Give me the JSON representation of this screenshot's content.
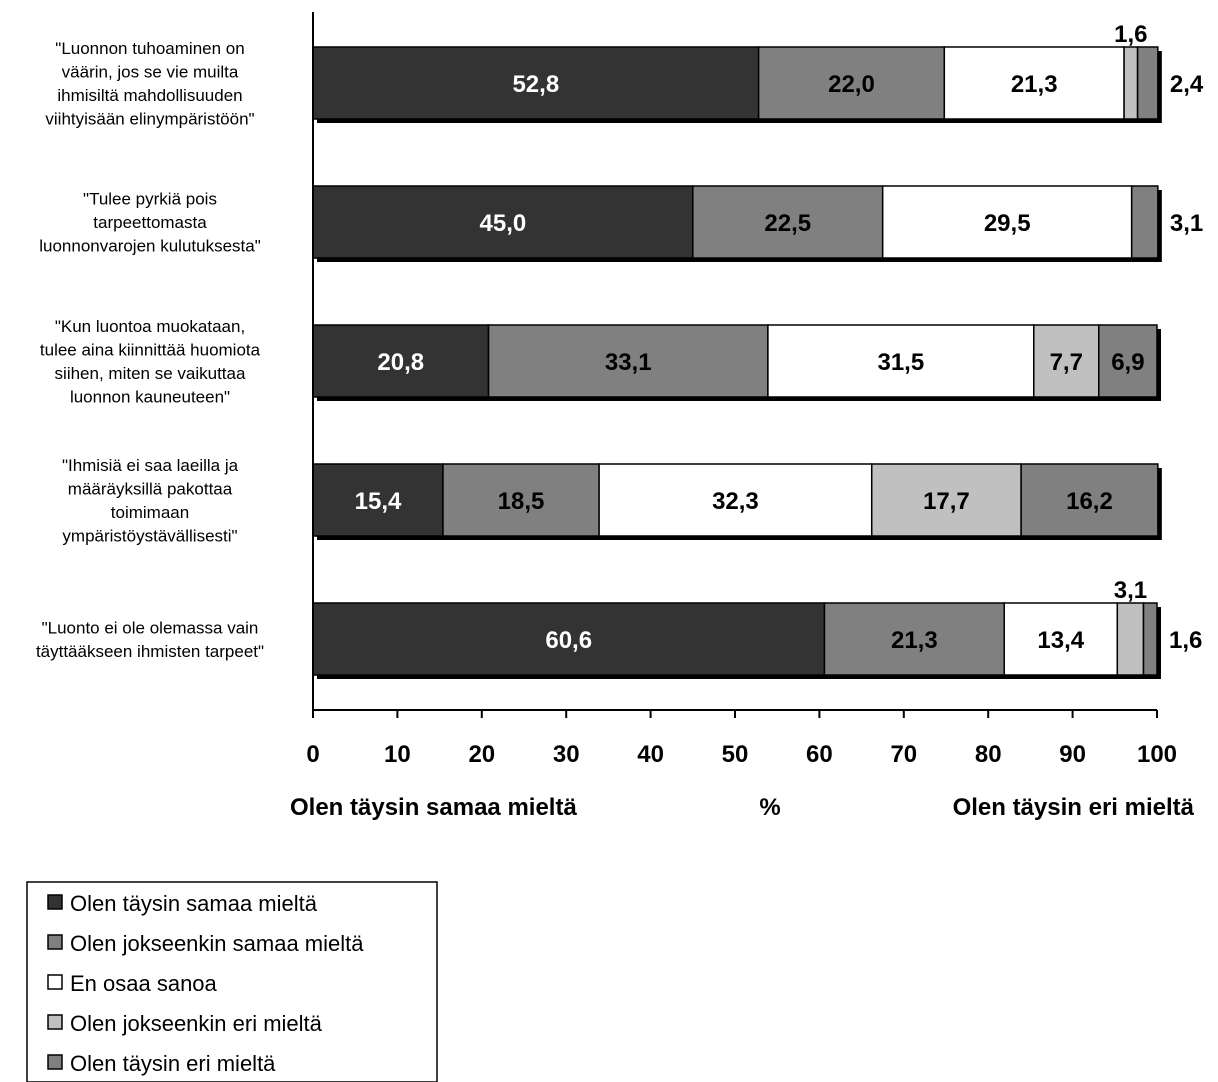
{
  "chart_data": {
    "type": "bar",
    "orientation": "horizontal",
    "stacked": true,
    "categories": [
      [
        "\"Luonnon tuhoaminen on",
        "väärin, jos se vie muilta",
        "ihmisiltä mahdollisuuden",
        "viihtyisään elinympäristöön\""
      ],
      [
        "\"Tulee pyrkiä pois",
        "tarpeettomasta",
        "luonnonvarojen kulutuksesta\""
      ],
      [
        "\"Kun luontoa muokataan,",
        "tulee aina kiinnittää huomiota",
        "siihen, miten se vaikuttaa",
        "luonnon kauneuteen\""
      ],
      [
        "\"Ihmisiä ei saa laeilla ja",
        "määräyksillä pakottaa",
        "toimimaan",
        "ympäristöystävällisesti\""
      ],
      [
        "\"Luonto ei ole olemassa vain",
        "täyttääkseen ihmisten tarpeet\""
      ]
    ],
    "series": [
      {
        "name": "Olen täysin samaa mieltä",
        "color": "#333333",
        "values": [
          52.8,
          45.0,
          20.8,
          15.4,
          60.6
        ],
        "labels": [
          "52,8",
          "45,0",
          "20,8",
          "15,4",
          "60,6"
        ]
      },
      {
        "name": "Olen jokseenkin samaa mieltä",
        "color": "#808080",
        "values": [
          22.0,
          22.5,
          33.1,
          18.5,
          21.3
        ],
        "labels": [
          "22,0",
          "22,5",
          "33,1",
          "18,5",
          "21,3"
        ]
      },
      {
        "name": "En osaa sanoa",
        "color": "#ffffff",
        "values": [
          21.3,
          29.5,
          31.5,
          32.3,
          13.4
        ],
        "labels": [
          "21,3",
          "29,5",
          "31,5",
          "32,3",
          "13,4"
        ]
      },
      {
        "name": "Olen jokseenkin eri mieltä",
        "color": "#c0c0c0",
        "values": [
          1.6,
          0,
          7.7,
          17.7,
          3.1
        ],
        "labels": [
          "1,6",
          "",
          "7,7",
          "17,7",
          "3,1"
        ]
      },
      {
        "name": "Olen täysin eri mieltä",
        "color": "#808080",
        "values": [
          2.4,
          3.1,
          6.9,
          16.2,
          1.6
        ],
        "labels": [
          "2,4",
          "3,1",
          "6,9",
          "16,2",
          "1,6"
        ]
      }
    ],
    "xlim": [
      0,
      100
    ],
    "xticks": [
      "0",
      "10",
      "20",
      "30",
      "40",
      "50",
      "60",
      "70",
      "80",
      "90",
      "100"
    ],
    "xlabel_left": "Olen täysin samaa mieltä",
    "xlabel_center": "%",
    "xlabel_right": "Olen täysin eri mieltä",
    "legend_position": "bottom-left"
  }
}
